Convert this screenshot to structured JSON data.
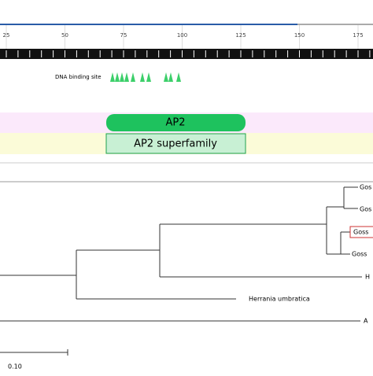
{
  "ruler": {
    "ticks": [
      25,
      50,
      75,
      100,
      125,
      150,
      175
    ]
  },
  "domains": {
    "site_label": "DNA binding site",
    "specific": "AP2",
    "superfamily": "AP2 superfamily"
  },
  "tree": {
    "leaves": [
      "Gos",
      "Gos",
      "Goss",
      "Goss",
      "H",
      "Herrania umbratica",
      "A"
    ],
    "scale": "0.10"
  }
}
